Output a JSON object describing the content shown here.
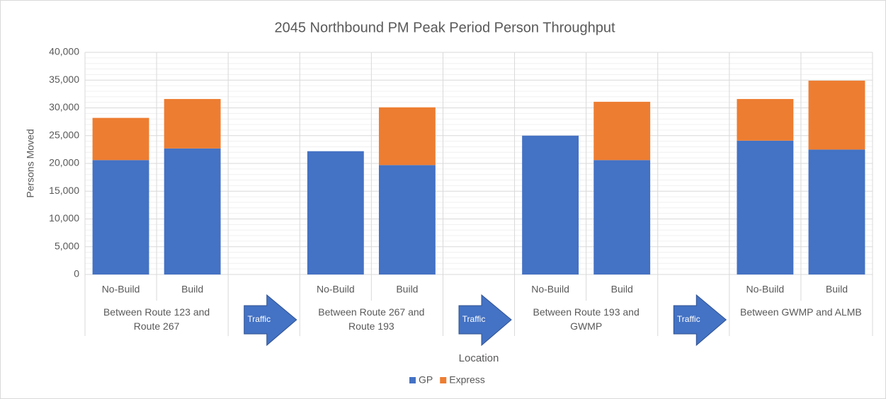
{
  "chart_data": {
    "type": "stacked_bar",
    "title": "2045 Northbound PM Peak Period Person Throughput",
    "x_label": "Location",
    "y_label": "Persons Moved",
    "categories": [
      "No-Build",
      "Build",
      null,
      "No-Build",
      "Build",
      null,
      "No-Build",
      "Build",
      null,
      "No-Build",
      "Build"
    ],
    "groups": [
      "Between Route 123 and Route 267",
      "Between Route 267 and Route 193",
      "Between Route 193 and GWMP",
      "Between GWMP and ALMB"
    ],
    "arrows": [
      "Traffic",
      "Traffic",
      "Traffic"
    ],
    "series": [
      {
        "name": "GP",
        "color": "#4472c4",
        "values": [
          20600,
          22700,
          null,
          22200,
          19700,
          null,
          25000,
          20600,
          null,
          24100,
          22500
        ]
      },
      {
        "name": "Express",
        "color": "#ed7d31",
        "values": [
          7600,
          8900,
          null,
          0,
          10400,
          null,
          0,
          10500,
          null,
          7500,
          12400
        ]
      }
    ],
    "ylim": [
      0,
      40000
    ],
    "yticks": [
      {
        "value": 0,
        "label": "0"
      },
      {
        "value": 5000,
        "label": "5,000"
      },
      {
        "value": 10000,
        "label": "10,000"
      },
      {
        "value": 15000,
        "label": "15,000"
      },
      {
        "value": 20000,
        "label": "20,000"
      },
      {
        "value": 25000,
        "label": "25,000"
      },
      {
        "value": 30000,
        "label": "30,000"
      },
      {
        "value": 35000,
        "label": "35,000"
      },
      {
        "value": 40000,
        "label": "40,000"
      }
    ],
    "grid": true,
    "minor_divisions": 5,
    "legend": "bottom"
  }
}
